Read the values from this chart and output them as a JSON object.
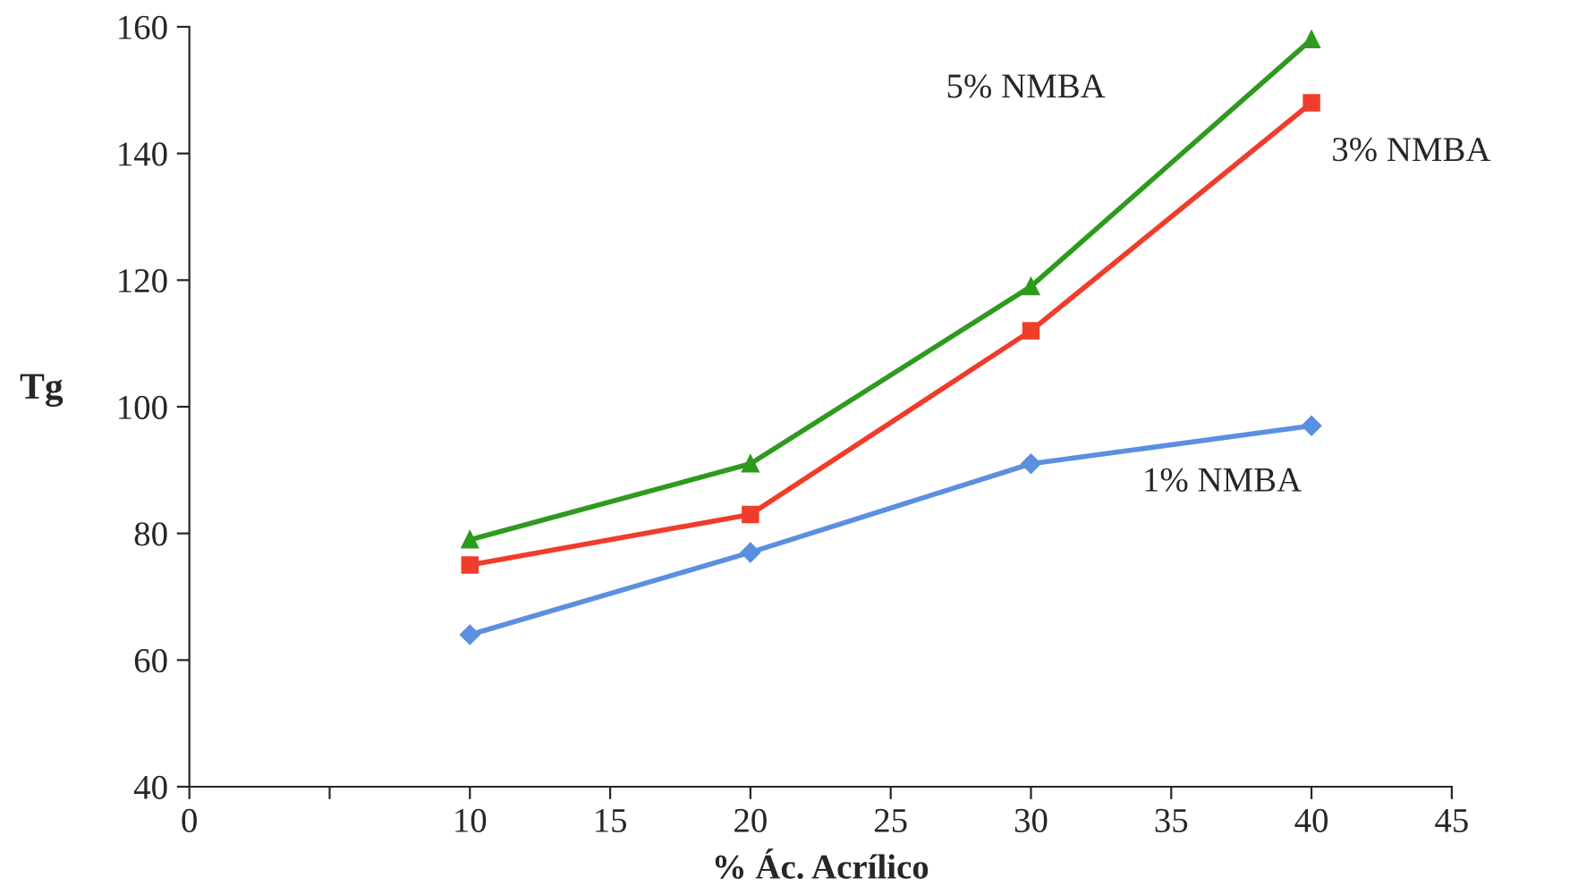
{
  "chart_data": {
    "type": "line",
    "xlabel": "% Ác. Acrílico",
    "ylabel": "Tg",
    "x": [
      10,
      20,
      30,
      40
    ],
    "series": [
      {
        "name": "1% NMBA",
        "color": "#5b8fe0",
        "values": [
          64,
          77,
          91,
          97
        ],
        "marker": "diamond"
      },
      {
        "name": "3% NMBA",
        "color": "#f03c2a",
        "values": [
          75,
          83,
          112,
          148
        ],
        "marker": "square"
      },
      {
        "name": "5% NMBA",
        "color": "#2e9a1e",
        "values": [
          79,
          91,
          119,
          158
        ],
        "marker": "triangle"
      }
    ],
    "xlim": [
      0,
      45
    ],
    "xticks": [
      0,
      {
        "value": 5,
        "label": null
      },
      10,
      15,
      20,
      25,
      30,
      35,
      40,
      45
    ],
    "ylim": [
      40,
      160
    ],
    "yticks": [
      40,
      60,
      80,
      100,
      120,
      140,
      160
    ],
    "grid": false,
    "legend": false
  }
}
